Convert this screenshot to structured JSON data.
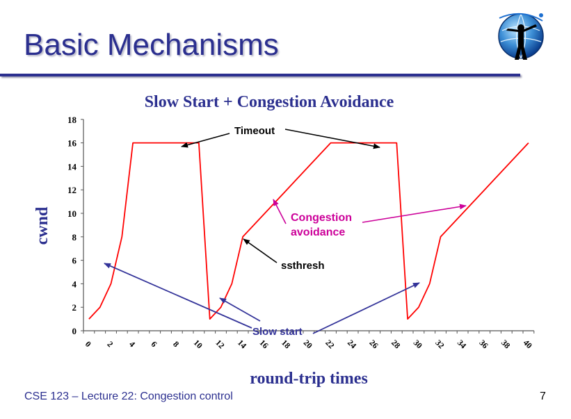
{
  "slide": {
    "title": "Basic Mechanisms",
    "footer_left": "CSE 123 – Lecture 22: Congestion control",
    "page_number": "7"
  },
  "logo": {
    "icon": "globe-person-logo"
  },
  "colors": {
    "title": "#2b2f8f",
    "line": "#ff0000",
    "annotation_magenta": "#cc0099",
    "arrow_blue": "#333399",
    "arrow_black": "#000000"
  },
  "chart_data": {
    "type": "line",
    "title": "Slow Start + Congestion Avoidance",
    "xlabel": "round-trip times",
    "ylabel": "cwnd",
    "xlim": [
      0,
      41
    ],
    "ylim": [
      0,
      18
    ],
    "xticks": [
      0,
      2,
      4,
      6,
      8,
      10,
      12,
      14,
      16,
      18,
      20,
      22,
      24,
      26,
      28,
      30,
      32,
      34,
      36,
      38,
      40
    ],
    "yticks": [
      0,
      2,
      4,
      6,
      8,
      10,
      12,
      14,
      16,
      18
    ],
    "grid": false,
    "series": [
      {
        "x": [
          0.5,
          1.5,
          2.5,
          3.5,
          4.5,
          10.5,
          11.5,
          12.5,
          13.5,
          14.5,
          15.5,
          16.5,
          17.5,
          18.5,
          19.5,
          20.5,
          21.5,
          22.5,
          23.5,
          28.5,
          29.5,
          30.5,
          31.5,
          32.5,
          33.5,
          34.5,
          35.5,
          36.5,
          37.5,
          38.5,
          39.5,
          40.5
        ],
        "values": [
          1,
          2,
          4,
          8,
          16,
          16,
          1,
          2,
          4,
          8,
          9,
          10,
          11,
          12,
          13,
          14,
          15,
          16,
          16,
          16,
          1,
          2,
          4,
          8,
          9,
          10,
          11,
          12,
          13,
          14,
          15,
          16
        ],
        "color": "#ff0000"
      }
    ],
    "annotations": [
      {
        "text": "Timeout",
        "color": "#000000",
        "arrows_to": [
          [
            10.4,
            16
          ],
          [
            27.4,
            16
          ]
        ]
      },
      {
        "text": "Congestion",
        "color": "#cc0099"
      },
      {
        "text": "avoidance",
        "color": "#cc0099",
        "arrows_to": [
          [
            17.3,
            11.3
          ],
          [
            34.0,
            10.8
          ]
        ]
      },
      {
        "text": "ssthresh",
        "color": "#000000",
        "arrows_to": [
          [
            14.5,
            8
          ]
        ]
      },
      {
        "text": "Slow start",
        "color": "#333399",
        "arrows_to": [
          [
            2.2,
            5.9
          ],
          [
            12.5,
            2.8
          ],
          [
            30.3,
            4.3
          ]
        ]
      }
    ]
  }
}
